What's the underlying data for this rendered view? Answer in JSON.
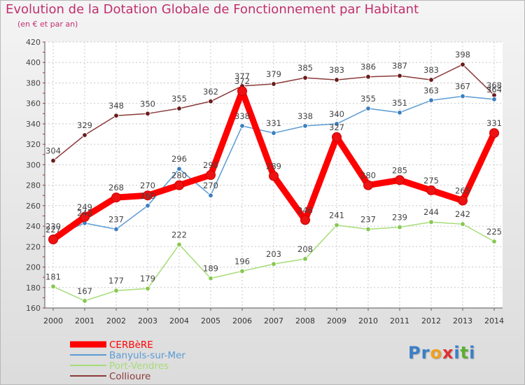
{
  "chart_data": {
    "type": "line",
    "title": "Evolution de la Dotation Globale de Fonctionnement par Habitant",
    "subtitle": "(en € et par an)",
    "x": [
      "2000",
      "2001",
      "2002",
      "2003",
      "2004",
      "2005",
      "2006",
      "2007",
      "2008",
      "2009",
      "2010",
      "2011",
      "2012",
      "2013",
      "2014"
    ],
    "ylim": [
      160,
      420
    ],
    "yticks": [
      "160",
      "180",
      "200",
      "220",
      "240",
      "260",
      "280",
      "300",
      "320",
      "340",
      "360",
      "380",
      "400",
      "420"
    ],
    "grid": true,
    "legend_position": "bottom-left",
    "series": [
      {
        "name": "CERBèRE",
        "color": "#ff0000",
        "marker": "#ee1111",
        "values": [
          227,
          249,
          268,
          270,
          280,
          290,
          372,
          289,
          246,
          327,
          280,
          285,
          275,
          265,
          331
        ],
        "labels": [
          "227",
          "249",
          "268",
          "270",
          "280",
          "290",
          "372",
          "289",
          "246",
          "327",
          "280",
          "285",
          "275",
          "265",
          "331"
        ]
      },
      {
        "name": "Banyuls-sur-Mer",
        "color": "#5a9bd4",
        "marker": "#3c7fc0",
        "values": [
          230,
          243,
          237,
          260,
          296,
          270,
          338,
          331,
          338,
          340,
          355,
          351,
          363,
          367,
          364
        ],
        "labels": [
          "230",
          "243",
          "237",
          "260",
          "296",
          "270",
          "338",
          "331",
          "338",
          "340",
          "355",
          "351",
          "363",
          "367",
          "364"
        ]
      },
      {
        "name": "Port-Vendres",
        "color": "#a6dc78",
        "marker": "#86c850",
        "values": [
          181,
          167,
          177,
          179,
          222,
          189,
          196,
          203,
          208,
          241,
          237,
          239,
          244,
          242,
          225
        ],
        "labels": [
          "181",
          "167",
          "177",
          "179",
          "222",
          "189",
          "196",
          "203",
          "208",
          "241",
          "237",
          "239",
          "244",
          "242",
          "225"
        ]
      },
      {
        "name": "Collioure",
        "color": "#8b3a3a",
        "marker": "#6a1c1c",
        "values": [
          304,
          329,
          348,
          350,
          355,
          362,
          377,
          379,
          385,
          383,
          386,
          387,
          383,
          398,
          368
        ],
        "labels": [
          "304",
          "329",
          "348",
          "350",
          "355",
          "362",
          "377",
          "379",
          "385",
          "383",
          "386",
          "387",
          "383",
          "398",
          "368"
        ]
      }
    ]
  },
  "logo": {
    "letters": [
      {
        "ch": "P",
        "color": "#3a7fc8"
      },
      {
        "ch": "r",
        "color": "#3a7fc8"
      },
      {
        "ch": "o",
        "color": "#f0a020"
      },
      {
        "ch": "x",
        "color": "#e03030"
      },
      {
        "ch": "i",
        "color": "#3a7fc8"
      },
      {
        "ch": "t",
        "color": "#5ab030"
      },
      {
        "ch": "i",
        "color": "#3a7fc8"
      }
    ]
  }
}
